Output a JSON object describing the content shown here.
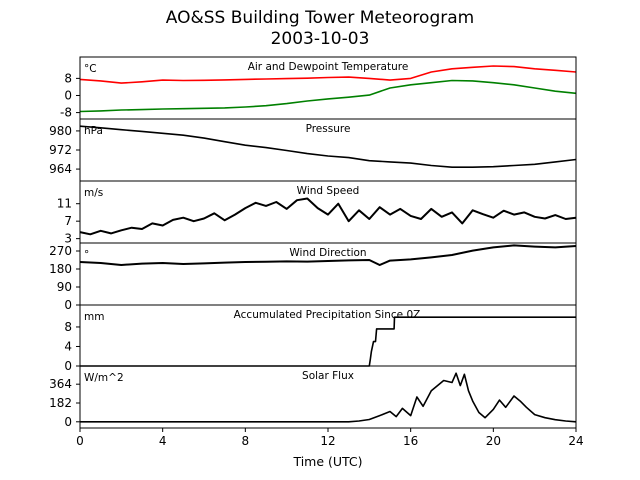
{
  "title": "AO&SS Building Tower Meteorogram",
  "subtitle": "2003-10-03",
  "chart_data": [
    {
      "type": "line",
      "title": "Air and Dewpoint Temperature",
      "unit": "°C",
      "xlim": [
        0,
        24
      ],
      "ylim": [
        -11,
        18
      ],
      "yticks": [
        -8,
        0,
        8
      ],
      "series": [
        {
          "name": "Air Temperature",
          "color": "#ff0000",
          "x": [
            0,
            1,
            2,
            3,
            4,
            5,
            6,
            7,
            8,
            9,
            10,
            11,
            12,
            13,
            14,
            15,
            16,
            17,
            18,
            19,
            20,
            21,
            22,
            23,
            24
          ],
          "y": [
            7.5,
            6.8,
            5.8,
            6.4,
            7.2,
            7.0,
            7.1,
            7.3,
            7.5,
            7.7,
            7.9,
            8.1,
            8.4,
            8.6,
            8.0,
            7.2,
            8.0,
            11.0,
            12.5,
            13.2,
            13.8,
            13.5,
            12.5,
            11.8,
            11.0
          ]
        },
        {
          "name": "Dewpoint",
          "color": "#008000",
          "x": [
            0,
            1,
            2,
            3,
            4,
            5,
            6,
            7,
            8,
            9,
            10,
            11,
            12,
            13,
            14,
            15,
            16,
            17,
            18,
            19,
            20,
            21,
            22,
            23,
            24
          ],
          "y": [
            -7.5,
            -7.2,
            -6.8,
            -6.6,
            -6.3,
            -6.2,
            -6.0,
            -5.8,
            -5.4,
            -4.8,
            -3.8,
            -2.6,
            -1.6,
            -0.8,
            0.2,
            3.5,
            5.0,
            6.0,
            7.0,
            6.8,
            6.0,
            5.0,
            3.5,
            2.0,
            1.0
          ]
        }
      ]
    },
    {
      "type": "line",
      "title": "Pressure",
      "unit": "hPa",
      "xlim": [
        0,
        24
      ],
      "ylim": [
        959,
        985
      ],
      "yticks": [
        964,
        972,
        980
      ],
      "series": [
        {
          "name": "Pressure",
          "color": "#000000",
          "x": [
            0,
            1,
            2,
            3,
            4,
            5,
            6,
            7,
            8,
            9,
            10,
            11,
            12,
            13,
            14,
            15,
            16,
            17,
            18,
            19,
            20,
            21,
            22,
            23,
            24
          ],
          "y": [
            982.0,
            981.3,
            980.5,
            979.8,
            979.0,
            978.2,
            977.0,
            975.5,
            974.0,
            973.0,
            971.8,
            970.5,
            969.5,
            968.8,
            967.5,
            967.0,
            966.5,
            965.5,
            964.8,
            964.8,
            965.0,
            965.5,
            966.0,
            967.0,
            968.0
          ]
        }
      ]
    },
    {
      "type": "line",
      "title": "Wind Speed",
      "unit": "m/s",
      "xlim": [
        0,
        24
      ],
      "ylim": [
        2.0,
        16.2
      ],
      "yticks": [
        3,
        7,
        11
      ],
      "series": [
        {
          "name": "Wind Speed",
          "color": "#000000",
          "x": [
            0,
            0.5,
            1,
            1.5,
            2,
            2.5,
            3,
            3.5,
            4,
            4.5,
            5,
            5.5,
            6,
            6.5,
            7,
            7.5,
            8,
            8.5,
            9,
            9.5,
            10,
            10.5,
            11,
            11.5,
            12,
            12.5,
            13,
            13.5,
            14,
            14.5,
            15,
            15.5,
            16,
            16.5,
            17,
            17.5,
            18,
            18.5,
            19,
            19.5,
            20,
            20.5,
            21,
            21.5,
            22,
            22.5,
            23,
            23.5,
            24
          ],
          "y": [
            4.5,
            4.0,
            4.8,
            4.2,
            4.9,
            5.5,
            5.2,
            6.5,
            6.0,
            7.3,
            7.8,
            7.0,
            7.6,
            8.8,
            7.2,
            8.5,
            10.0,
            11.2,
            10.5,
            11.4,
            9.8,
            11.8,
            12.2,
            10.0,
            8.5,
            11.0,
            7.0,
            9.5,
            7.5,
            10.2,
            8.5,
            9.8,
            8.2,
            7.5,
            9.8,
            8.0,
            9.0,
            6.5,
            9.5,
            8.6,
            7.8,
            9.4,
            8.5,
            9.0,
            8.0,
            7.6,
            8.4,
            7.5,
            7.8
          ]
        }
      ]
    },
    {
      "type": "line",
      "title": "Wind Direction",
      "unit": "°",
      "xlim": [
        0,
        24
      ],
      "ylim": [
        0,
        310
      ],
      "yticks": [
        0,
        90,
        180,
        270
      ],
      "series": [
        {
          "name": "Wind Direction",
          "color": "#000000",
          "x": [
            0,
            1,
            2,
            3,
            4,
            5,
            6,
            7,
            8,
            9,
            10,
            11,
            12,
            13,
            14,
            14.5,
            15,
            16,
            17,
            18,
            19,
            20,
            21,
            22,
            23,
            24
          ],
          "y": [
            215,
            210,
            200,
            207,
            210,
            205,
            208,
            212,
            215,
            216,
            218,
            217,
            220,
            223,
            225,
            200,
            222,
            228,
            238,
            250,
            272,
            288,
            298,
            292,
            288,
            295
          ]
        }
      ]
    },
    {
      "type": "line",
      "title": "Accumulated Precipitation Since 0Z",
      "unit": "mm",
      "xlim": [
        0,
        24
      ],
      "ylim": [
        0,
        12.5
      ],
      "yticks": [
        0,
        4,
        8
      ],
      "series": [
        {
          "name": "Accumulated Precipitation",
          "color": "#000000",
          "x": [
            0,
            14.0,
            14.05,
            14.1,
            14.2,
            14.3,
            14.35,
            15.2,
            15.22,
            24
          ],
          "y": [
            0,
            0,
            1.5,
            3.0,
            5.0,
            5.0,
            7.6,
            7.6,
            10.0,
            10.0
          ]
        }
      ]
    },
    {
      "type": "line",
      "title": "Solar Flux",
      "unit": "W/m^2",
      "xlim": [
        0,
        24
      ],
      "ylim": [
        -60,
        540
      ],
      "yticks": [
        0,
        182,
        364
      ],
      "series": [
        {
          "name": "Solar Flux",
          "color": "#000000",
          "x": [
            0,
            13,
            13.5,
            14,
            14.5,
            15,
            15.3,
            15.6,
            16,
            16.3,
            16.6,
            17,
            17.3,
            17.6,
            18,
            18.2,
            18.4,
            18.6,
            18.8,
            19,
            19.3,
            19.6,
            20,
            20.3,
            20.6,
            21,
            21.3,
            21.6,
            22,
            22.5,
            23,
            23.5,
            24
          ],
          "y": [
            0,
            0,
            8,
            22,
            60,
            100,
            50,
            130,
            60,
            240,
            150,
            300,
            350,
            400,
            380,
            470,
            350,
            460,
            300,
            200,
            90,
            40,
            120,
            210,
            140,
            250,
            200,
            140,
            70,
            40,
            20,
            8,
            0
          ]
        }
      ]
    }
  ],
  "x_axis": {
    "label": "Time (UTC)",
    "ticks": [
      0,
      4,
      8,
      12,
      16,
      20,
      24
    ]
  }
}
